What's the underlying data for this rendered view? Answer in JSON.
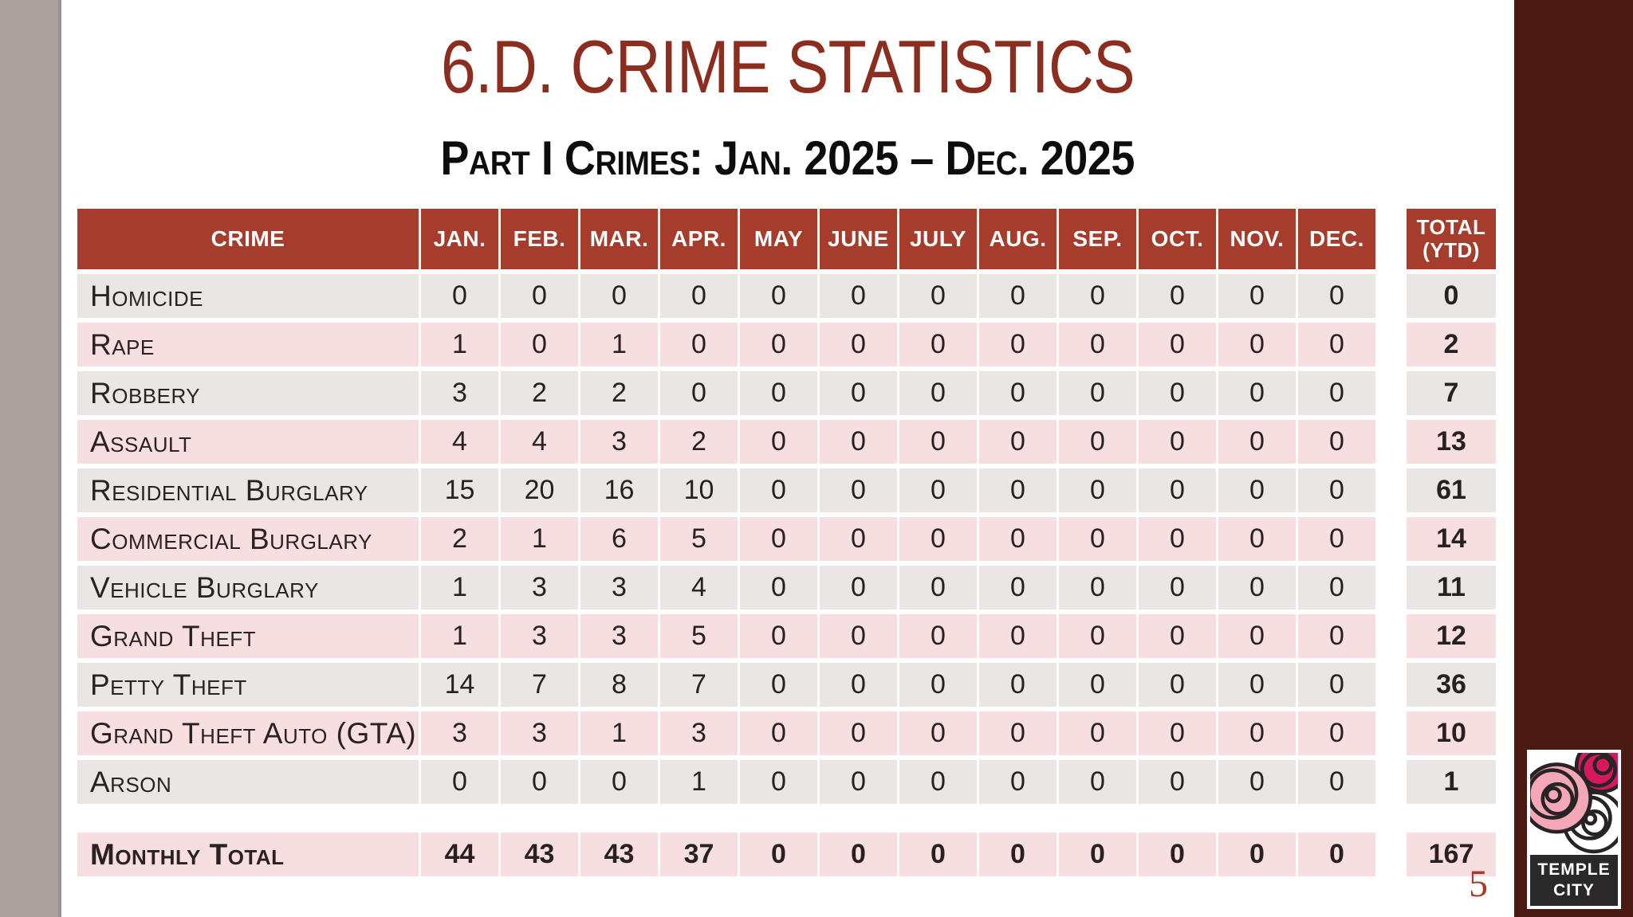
{
  "slide": {
    "title": "6.D. CRIME STATISTICS",
    "subtitle": "Part I Crimes: Jan. 2025 – Dec. 2025",
    "page_number": "5"
  },
  "table": {
    "crime_header": "CRIME",
    "month_headers": [
      "JAN.",
      "FEB.",
      "MAR.",
      "APR.",
      "MAY",
      "JUNE",
      "JULY",
      "AUG.",
      "SEP.",
      "OCT.",
      "NOV.",
      "DEC."
    ],
    "total_header_line1": "TOTAL",
    "total_header_line2": "(YTD)",
    "rows": [
      {
        "label": "Homicide",
        "values": [
          0,
          0,
          0,
          0,
          0,
          0,
          0,
          0,
          0,
          0,
          0,
          0
        ],
        "total": 0
      },
      {
        "label": "Rape",
        "values": [
          1,
          0,
          1,
          0,
          0,
          0,
          0,
          0,
          0,
          0,
          0,
          0
        ],
        "total": 2
      },
      {
        "label": "Robbery",
        "values": [
          3,
          2,
          2,
          0,
          0,
          0,
          0,
          0,
          0,
          0,
          0,
          0
        ],
        "total": 7
      },
      {
        "label": "Assault",
        "values": [
          4,
          4,
          3,
          2,
          0,
          0,
          0,
          0,
          0,
          0,
          0,
          0
        ],
        "total": 13
      },
      {
        "label": "Residential Burglary",
        "values": [
          15,
          20,
          16,
          10,
          0,
          0,
          0,
          0,
          0,
          0,
          0,
          0
        ],
        "total": 61
      },
      {
        "label": "Commercial Burglary",
        "values": [
          2,
          1,
          6,
          5,
          0,
          0,
          0,
          0,
          0,
          0,
          0,
          0
        ],
        "total": 14
      },
      {
        "label": "Vehicle Burglary",
        "values": [
          1,
          3,
          3,
          4,
          0,
          0,
          0,
          0,
          0,
          0,
          0,
          0
        ],
        "total": 11
      },
      {
        "label": "Grand Theft",
        "values": [
          1,
          3,
          3,
          5,
          0,
          0,
          0,
          0,
          0,
          0,
          0,
          0
        ],
        "total": 12
      },
      {
        "label": "Petty Theft",
        "values": [
          14,
          7,
          8,
          7,
          0,
          0,
          0,
          0,
          0,
          0,
          0,
          0
        ],
        "total": 36
      },
      {
        "label": "Grand Theft Auto (GTA)",
        "values": [
          3,
          3,
          1,
          3,
          0,
          0,
          0,
          0,
          0,
          0,
          0,
          0
        ],
        "total": 10
      },
      {
        "label": "Arson",
        "values": [
          0,
          0,
          0,
          1,
          0,
          0,
          0,
          0,
          0,
          0,
          0,
          0
        ],
        "total": 1
      }
    ],
    "total_row": {
      "label": "Monthly Total",
      "values": [
        44,
        43,
        43,
        37,
        0,
        0,
        0,
        0,
        0,
        0,
        0,
        0
      ],
      "total": 167
    }
  },
  "logo": {
    "line1": "TEMPLE",
    "line2": "CITY"
  },
  "colors": {
    "header_red": "#A63C2B",
    "title_red": "#8C2E1F",
    "row_gray": "#E9E6E5",
    "row_pink": "#F6DEE1",
    "sidebar_maroon": "#4A1A12",
    "left_bar_gray": "#A8A19E",
    "page_number_red": "#A8392C",
    "logo_pink": "#F4A7B6",
    "logo_magenta": "#D6195C",
    "logo_outline": "#282324"
  }
}
